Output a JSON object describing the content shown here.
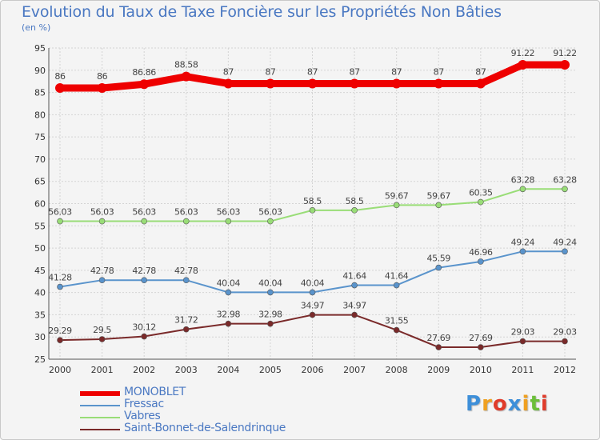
{
  "title": "Evolution du Taux de Taxe Foncière sur les Propriétés Non Bâties",
  "unit_label": "(en %)",
  "logo": {
    "letters": [
      "P",
      "r",
      "o",
      "x",
      "i",
      "t",
      "i"
    ],
    "colors": [
      "#3d8fd9",
      "#f0a020",
      "#e03b2a",
      "#3d8fd9",
      "#f0a020",
      "#6cbf3a",
      "#e03b2a"
    ]
  },
  "chart_data": {
    "type": "line",
    "x": [
      "2000",
      "2001",
      "2002",
      "2003",
      "2004",
      "2005",
      "2006",
      "2007",
      "2008",
      "2009",
      "2010",
      "2011",
      "2012"
    ],
    "ylim": [
      25,
      95
    ],
    "yticks": [
      "25",
      "30",
      "35",
      "40",
      "45",
      "50",
      "55",
      "60",
      "65",
      "70",
      "75",
      "80",
      "85",
      "90",
      "95"
    ],
    "grid": true,
    "legend_position": "bottom-left",
    "series": [
      {
        "name": "MONOBLET",
        "color": "#ee0000",
        "values": [
          86,
          86,
          86.86,
          88.58,
          87,
          87,
          87,
          87,
          87,
          87,
          87,
          91.22,
          91.22
        ],
        "labels": [
          "86",
          "86",
          "86.86",
          "88.58",
          "87",
          "87",
          "87",
          "87",
          "87",
          "87",
          "87",
          "91.22",
          "91.22"
        ]
      },
      {
        "name": "Fressac",
        "color": "#5a94cc",
        "values": [
          41.28,
          42.78,
          42.78,
          42.78,
          40.04,
          40.04,
          40.04,
          41.64,
          41.64,
          45.59,
          46.96,
          49.24,
          49.24
        ],
        "labels": [
          "41.28",
          "42.78",
          "42.78",
          "42.78",
          "40.04",
          "40.04",
          "40.04",
          "41.64",
          "41.64",
          "45.59",
          "46.96",
          "49.24",
          "49.24"
        ]
      },
      {
        "name": "Vabres",
        "color": "#99dd77",
        "values": [
          56.03,
          56.03,
          56.03,
          56.03,
          56.03,
          56.03,
          58.5,
          58.5,
          59.67,
          59.67,
          60.35,
          63.28,
          63.28
        ],
        "labels": [
          "56.03",
          "56.03",
          "56.03",
          "56.03",
          "56.03",
          "56.03",
          "58.5",
          "58.5",
          "59.67",
          "59.67",
          "60.35",
          "63.28",
          "63.28"
        ]
      },
      {
        "name": "Saint-Bonnet-de-Salendrinque",
        "color": "#7a2a2a",
        "values": [
          29.29,
          29.5,
          30.12,
          31.72,
          32.98,
          32.98,
          34.97,
          34.97,
          31.55,
          27.69,
          27.69,
          29.03,
          29.03
        ],
        "labels": [
          "29.29",
          "29.5",
          "30.12",
          "31.72",
          "32.98",
          "32.98",
          "34.97",
          "34.97",
          "31.55",
          "27.69",
          "27.69",
          "29.03",
          "29.03"
        ]
      }
    ]
  }
}
